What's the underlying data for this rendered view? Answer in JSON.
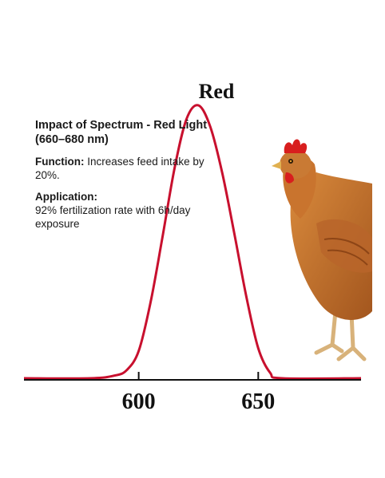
{
  "chart_data": {
    "type": "line",
    "title": "",
    "xlabel": "",
    "ylabel": "",
    "xlim": [
      552,
      693
    ],
    "ylim": [
      0,
      1
    ],
    "x_ticks": [
      600,
      650
    ],
    "x_tick_labels": [
      "600",
      "650"
    ],
    "peak_label": "Red",
    "grid": false,
    "series": [
      {
        "color": "#c8102e",
        "x": [
          552,
          580,
          590,
          595,
          600,
          605,
          610,
          615,
          620,
          625,
          630,
          635,
          640,
          645,
          650,
          655,
          660,
          693
        ],
        "y": [
          0.0,
          0.0,
          0.01,
          0.03,
          0.1,
          0.28,
          0.52,
          0.77,
          0.95,
          1.0,
          0.92,
          0.75,
          0.53,
          0.3,
          0.11,
          0.02,
          0.0,
          0.0
        ]
      }
    ]
  },
  "info": {
    "heading": "Impact of Spectrum - Red Light (660–680 nm)",
    "function_label": "Function:",
    "function_text": "Increases feed intake by 20%.",
    "application_label": "Application:",
    "application_text": "92% fertilization rate with 6h/day exposure"
  },
  "colors": {
    "curve": "#c8102e",
    "axis": "#111111"
  },
  "illustration": "hen-illustration"
}
